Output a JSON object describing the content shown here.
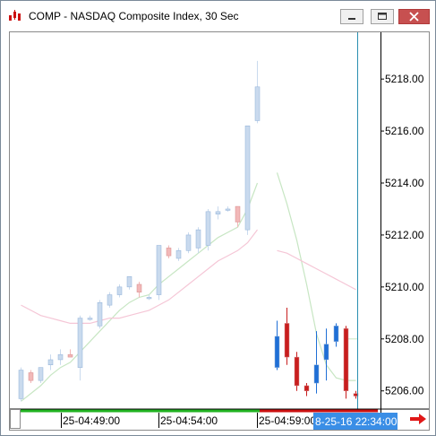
{
  "window": {
    "title": "COMP - NASDAQ Composite Index, 30 Sec",
    "app_icon": "candlestick-app-icon",
    "controls": [
      "minimize-icon",
      "maximize-icon",
      "close-icon"
    ]
  },
  "chart_data": {
    "type": "candlestick",
    "title": "",
    "ylim": [
      5205.3,
      5219.8
    ],
    "y_ticks": [
      "5218.00",
      "5216.00",
      "5214.00",
      "5212.00",
      "5210.00",
      "5208.00",
      "5206.00"
    ],
    "x_tick_labels": [
      "25-04:49:00",
      "25-04:54:00",
      "25-04:59:00"
    ],
    "cursor_time_label": "8-25-16 22:34:00",
    "colors": {
      "up_faded": "#c9daee",
      "down_faded": "#f2b8b8",
      "up": "#1f6fd6",
      "down": "#c81e1e",
      "cursor": "#2a8fb0",
      "session_green": "#22b322",
      "session_red": "#cc1111",
      "ma_fast": "#c7e6c3",
      "ma_slow": "#f5c6d6",
      "nav_arrow": "#e01818"
    },
    "candles_faded": [
      {
        "o": 5205.7,
        "h": 5206.9,
        "l": 5205.6,
        "c": 5206.8
      },
      {
        "o": 5206.7,
        "h": 5206.8,
        "l": 5206.3,
        "c": 5206.4
      },
      {
        "o": 5206.4,
        "h": 5206.9,
        "l": 5206.3,
        "c": 5206.9
      },
      {
        "o": 5207.0,
        "h": 5207.4,
        "l": 5206.8,
        "c": 5207.2
      },
      {
        "o": 5207.2,
        "h": 5207.6,
        "l": 5207.0,
        "c": 5207.4
      },
      {
        "o": 5207.4,
        "h": 5207.6,
        "l": 5207.3,
        "c": 5207.3
      },
      {
        "o": 5206.9,
        "h": 5208.9,
        "l": 5206.4,
        "c": 5208.8
      },
      {
        "o": 5208.8,
        "h": 5208.9,
        "l": 5208.7,
        "c": 5208.8
      },
      {
        "o": 5208.5,
        "h": 5209.5,
        "l": 5208.4,
        "c": 5209.4
      },
      {
        "o": 5209.3,
        "h": 5209.8,
        "l": 5209.2,
        "c": 5209.7
      },
      {
        "o": 5209.7,
        "h": 5210.1,
        "l": 5209.6,
        "c": 5210.0
      },
      {
        "o": 5210.0,
        "h": 5210.4,
        "l": 5209.9,
        "c": 5210.4
      },
      {
        "o": 5210.1,
        "h": 5210.2,
        "l": 5209.6,
        "c": 5209.8
      },
      {
        "o": 5209.6,
        "h": 5209.7,
        "l": 5209.5,
        "c": 5209.6
      },
      {
        "o": 5209.7,
        "h": 5211.6,
        "l": 5209.5,
        "c": 5211.6
      },
      {
        "o": 5211.5,
        "h": 5211.6,
        "l": 5211.1,
        "c": 5211.2
      },
      {
        "o": 5211.1,
        "h": 5211.5,
        "l": 5211.0,
        "c": 5211.4
      },
      {
        "o": 5211.4,
        "h": 5212.1,
        "l": 5211.3,
        "c": 5212.0
      },
      {
        "o": 5211.5,
        "h": 5212.3,
        "l": 5211.3,
        "c": 5212.2
      },
      {
        "o": 5211.6,
        "h": 5213.0,
        "l": 5211.4,
        "c": 5212.9
      },
      {
        "o": 5212.8,
        "h": 5213.1,
        "l": 5212.6,
        "c": 5212.9
      },
      {
        "o": 5213.0,
        "h": 5213.1,
        "l": 5212.9,
        "c": 5213.0
      },
      {
        "o": 5213.1,
        "h": 5213.1,
        "l": 5212.3,
        "c": 5212.5
      },
      {
        "o": 5212.2,
        "h": 5216.2,
        "l": 5212.0,
        "c": 5216.2
      },
      {
        "o": 5216.4,
        "h": 5218.7,
        "l": 5216.3,
        "c": 5217.7
      }
    ],
    "candles_active": [
      {
        "o": 5206.9,
        "h": 5208.7,
        "l": 5206.8,
        "c": 5208.1
      },
      {
        "o": 5208.6,
        "h": 5209.2,
        "l": 5207.0,
        "c": 5207.3
      },
      {
        "o": 5207.3,
        "h": 5207.5,
        "l": 5206.0,
        "c": 5206.2
      },
      {
        "o": 5206.2,
        "h": 5206.3,
        "l": 5205.8,
        "c": 5206.0
      },
      {
        "o": 5206.3,
        "h": 5208.3,
        "l": 5205.9,
        "c": 5207.0
      },
      {
        "o": 5207.2,
        "h": 5208.4,
        "l": 5206.4,
        "c": 5207.8
      },
      {
        "o": 5207.9,
        "h": 5208.6,
        "l": 5207.7,
        "c": 5208.5
      },
      {
        "o": 5208.4,
        "h": 5208.5,
        "l": 5205.7,
        "c": 5206.0
      },
      {
        "o": 5205.9,
        "h": 5206.0,
        "l": 5205.7,
        "c": 5205.8
      }
    ],
    "ma_fast_faded": [
      5205.6,
      5205.9,
      5206.2,
      5206.6,
      5206.9,
      5207.1,
      5207.5,
      5207.9,
      5208.3,
      5208.7,
      5209.1,
      5209.4,
      5209.6,
      5209.7,
      5210.1,
      5210.4,
      5210.7,
      5211.0,
      5211.3,
      5211.6,
      5211.9,
      5212.1,
      5212.3,
      5213.0,
      5214.0
    ],
    "ma_slow_faded": [
      5209.3,
      5209.1,
      5208.9,
      5208.8,
      5208.7,
      5208.6,
      5208.6,
      5208.6,
      5208.7,
      5208.8,
      5208.8,
      5208.9,
      5209.0,
      5209.1,
      5209.3,
      5209.5,
      5209.8,
      5210.1,
      5210.4,
      5210.7,
      5211.0,
      5211.2,
      5211.4,
      5211.7,
      5212.2
    ],
    "ma_fast_active": [
      5214.4,
      5213.2,
      5211.8,
      5210.1,
      5208.2,
      5207.0,
      5206.5,
      5206.4,
      5206.4
    ],
    "ma_slow_active": [
      5211.4,
      5211.3,
      5211.1,
      5210.9,
      5210.7,
      5210.5,
      5210.3,
      5210.1,
      5209.9
    ],
    "cursor_price": 5208.0
  }
}
